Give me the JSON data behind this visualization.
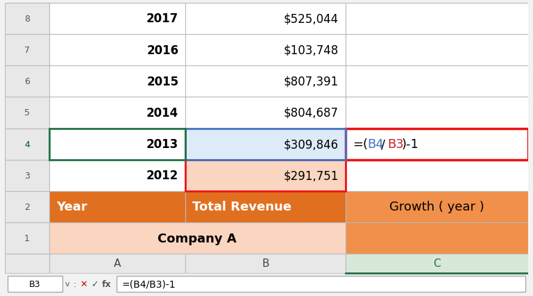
{
  "toolbar_text": "B3",
  "formula_text": "=(B4/B3)-1",
  "col_headers": [
    "A",
    "B",
    "C"
  ],
  "row_numbers": [
    "1",
    "2",
    "3",
    "4",
    "5",
    "6",
    "7",
    "8"
  ],
  "row1_AB_text": "Company A",
  "row2_A_text": "Year",
  "row2_B_text": "Total Revenue",
  "row2_C_text": "Growth ( year )",
  "data_years": [
    "2012",
    "2013",
    "2014",
    "2015",
    "2016",
    "2017"
  ],
  "data_revenues": [
    "$291,751",
    "$309,846",
    "$804,687",
    "$807,391",
    "$103,748",
    "$525,044"
  ],
  "orange_dark": "#E07020",
  "orange_mid": "#F0904A",
  "orange_pale": "#FAD5C0",
  "blue_pale": "#DDEAF8",
  "col_c_header_bg": "#D8E8D8",
  "col_c_header_text": "#217346",
  "row_num_bg": "#E8E8E8",
  "col_header_bg": "#E8E8E8",
  "white": "#FFFFFF",
  "grid_color": "#BBBBBB",
  "text_black": "#000000",
  "red_border": "#EE1111",
  "blue_border": "#4472C4",
  "green_border": "#217346",
  "toolbar_bg": "#F2F2F2",
  "formula_b4_color": "#4472C4",
  "formula_b3_color": "#CC2222"
}
